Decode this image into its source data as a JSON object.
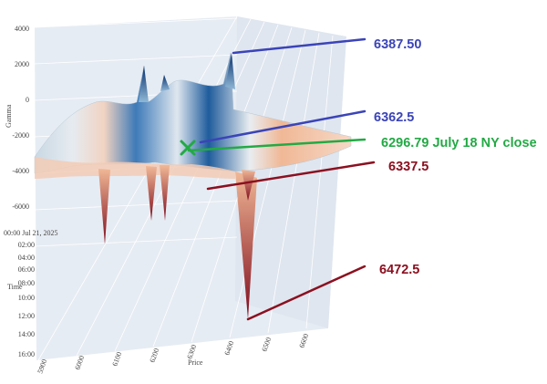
{
  "chart_data": {
    "type": "surface-3d",
    "axes": {
      "gamma": {
        "label": "Gamma",
        "ticks": [
          "4000",
          "2000",
          "0",
          "-2000",
          "-4000",
          "-6000"
        ]
      },
      "time": {
        "label": "Time",
        "ticks": [
          "00:00 Jul 21, 2025",
          "02:00",
          "04:00",
          "06:00",
          "08:00",
          "10:00",
          "12:00",
          "14:00",
          "16:00"
        ]
      },
      "price": {
        "label": "Price",
        "ticks": [
          "5900",
          "6000",
          "6100",
          "6200",
          "6300",
          "6400",
          "6500",
          "6600"
        ]
      }
    },
    "colorscale": [
      "#08306b",
      "#2c6fb2",
      "#9dc6e0",
      "#e9edf0",
      "#f4c3a6",
      "#d05c46",
      "#7f0c1d"
    ],
    "annotations": [
      {
        "text": "6387.50",
        "color": "#3b44b8",
        "strike": 6387.5,
        "gamma": 2800
      },
      {
        "text": "6362.5",
        "color": "#3b44b8",
        "strike": 6362.5,
        "gamma": -1900
      },
      {
        "text": "6296.79 July 18 NY close",
        "color": "#22aa44",
        "strike": 6296.79,
        "gamma": -2100
      },
      {
        "text": "6337.5",
        "color": "#8b1020",
        "strike": 6337.5,
        "gamma": -4600
      },
      {
        "text": "6472.5",
        "color": "#8b1020",
        "strike": 6472.5,
        "gamma": -6800
      }
    ],
    "marker": {
      "symbol": "x",
      "color": "#22aa44",
      "price": 6296.79
    }
  }
}
